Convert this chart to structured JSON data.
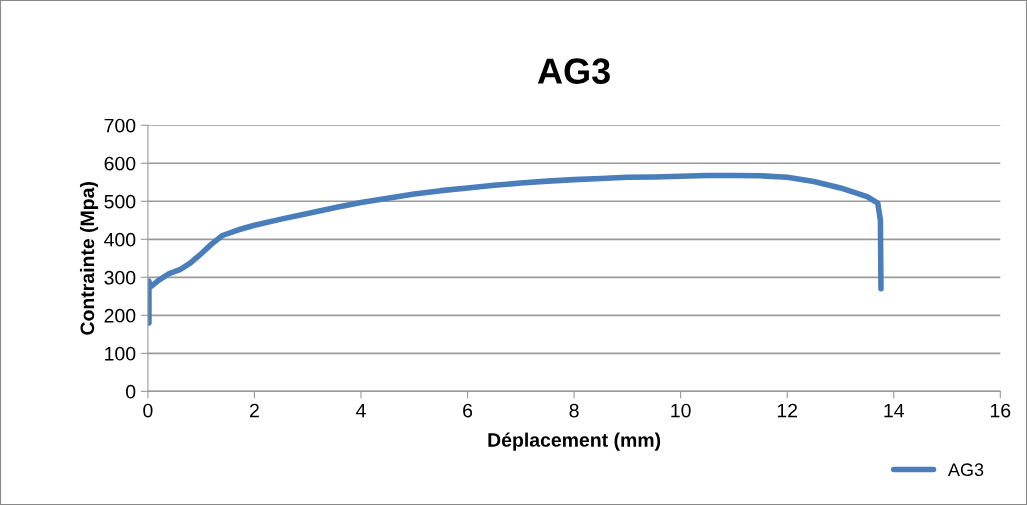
{
  "chart_data": {
    "type": "line",
    "title": "AG3",
    "xlabel": "Déplacement (mm)",
    "ylabel": "Contrainte (Mpa)",
    "x": [
      0.02,
      0.02,
      0.03,
      0.05,
      0.2,
      0.4,
      0.6,
      0.8,
      1.0,
      1.2,
      1.4,
      1.7,
      2,
      2.5,
      3,
      3.5,
      4,
      4.5,
      5,
      5.5,
      6,
      6.5,
      7,
      7.5,
      8,
      8.5,
      9,
      9.5,
      10,
      10.5,
      11,
      11.5,
      12,
      12.5,
      13,
      13.5,
      13.7,
      13.75,
      13.76
    ],
    "series": [
      {
        "name": "AG3",
        "color": "#4a7ebb",
        "values": [
          180,
          290,
          275,
          275,
          292,
          310,
          320,
          338,
          362,
          388,
          410,
          425,
          437,
          453,
          468,
          483,
          497,
          508,
          519,
          528,
          535,
          542,
          548,
          553,
          557,
          560,
          563,
          564,
          566,
          568,
          568,
          567,
          563,
          552,
          535,
          512,
          495,
          450,
          270
        ]
      }
    ],
    "xlim": [
      0,
      16
    ],
    "xticks": [
      0,
      2,
      4,
      6,
      8,
      10,
      12,
      14,
      16
    ],
    "ylim": [
      0,
      700
    ],
    "yticks": [
      0,
      100,
      200,
      300,
      400,
      500,
      600,
      700
    ],
    "grid": "y",
    "legend": "bottom right",
    "marker": "none",
    "line_style": "solid"
  }
}
